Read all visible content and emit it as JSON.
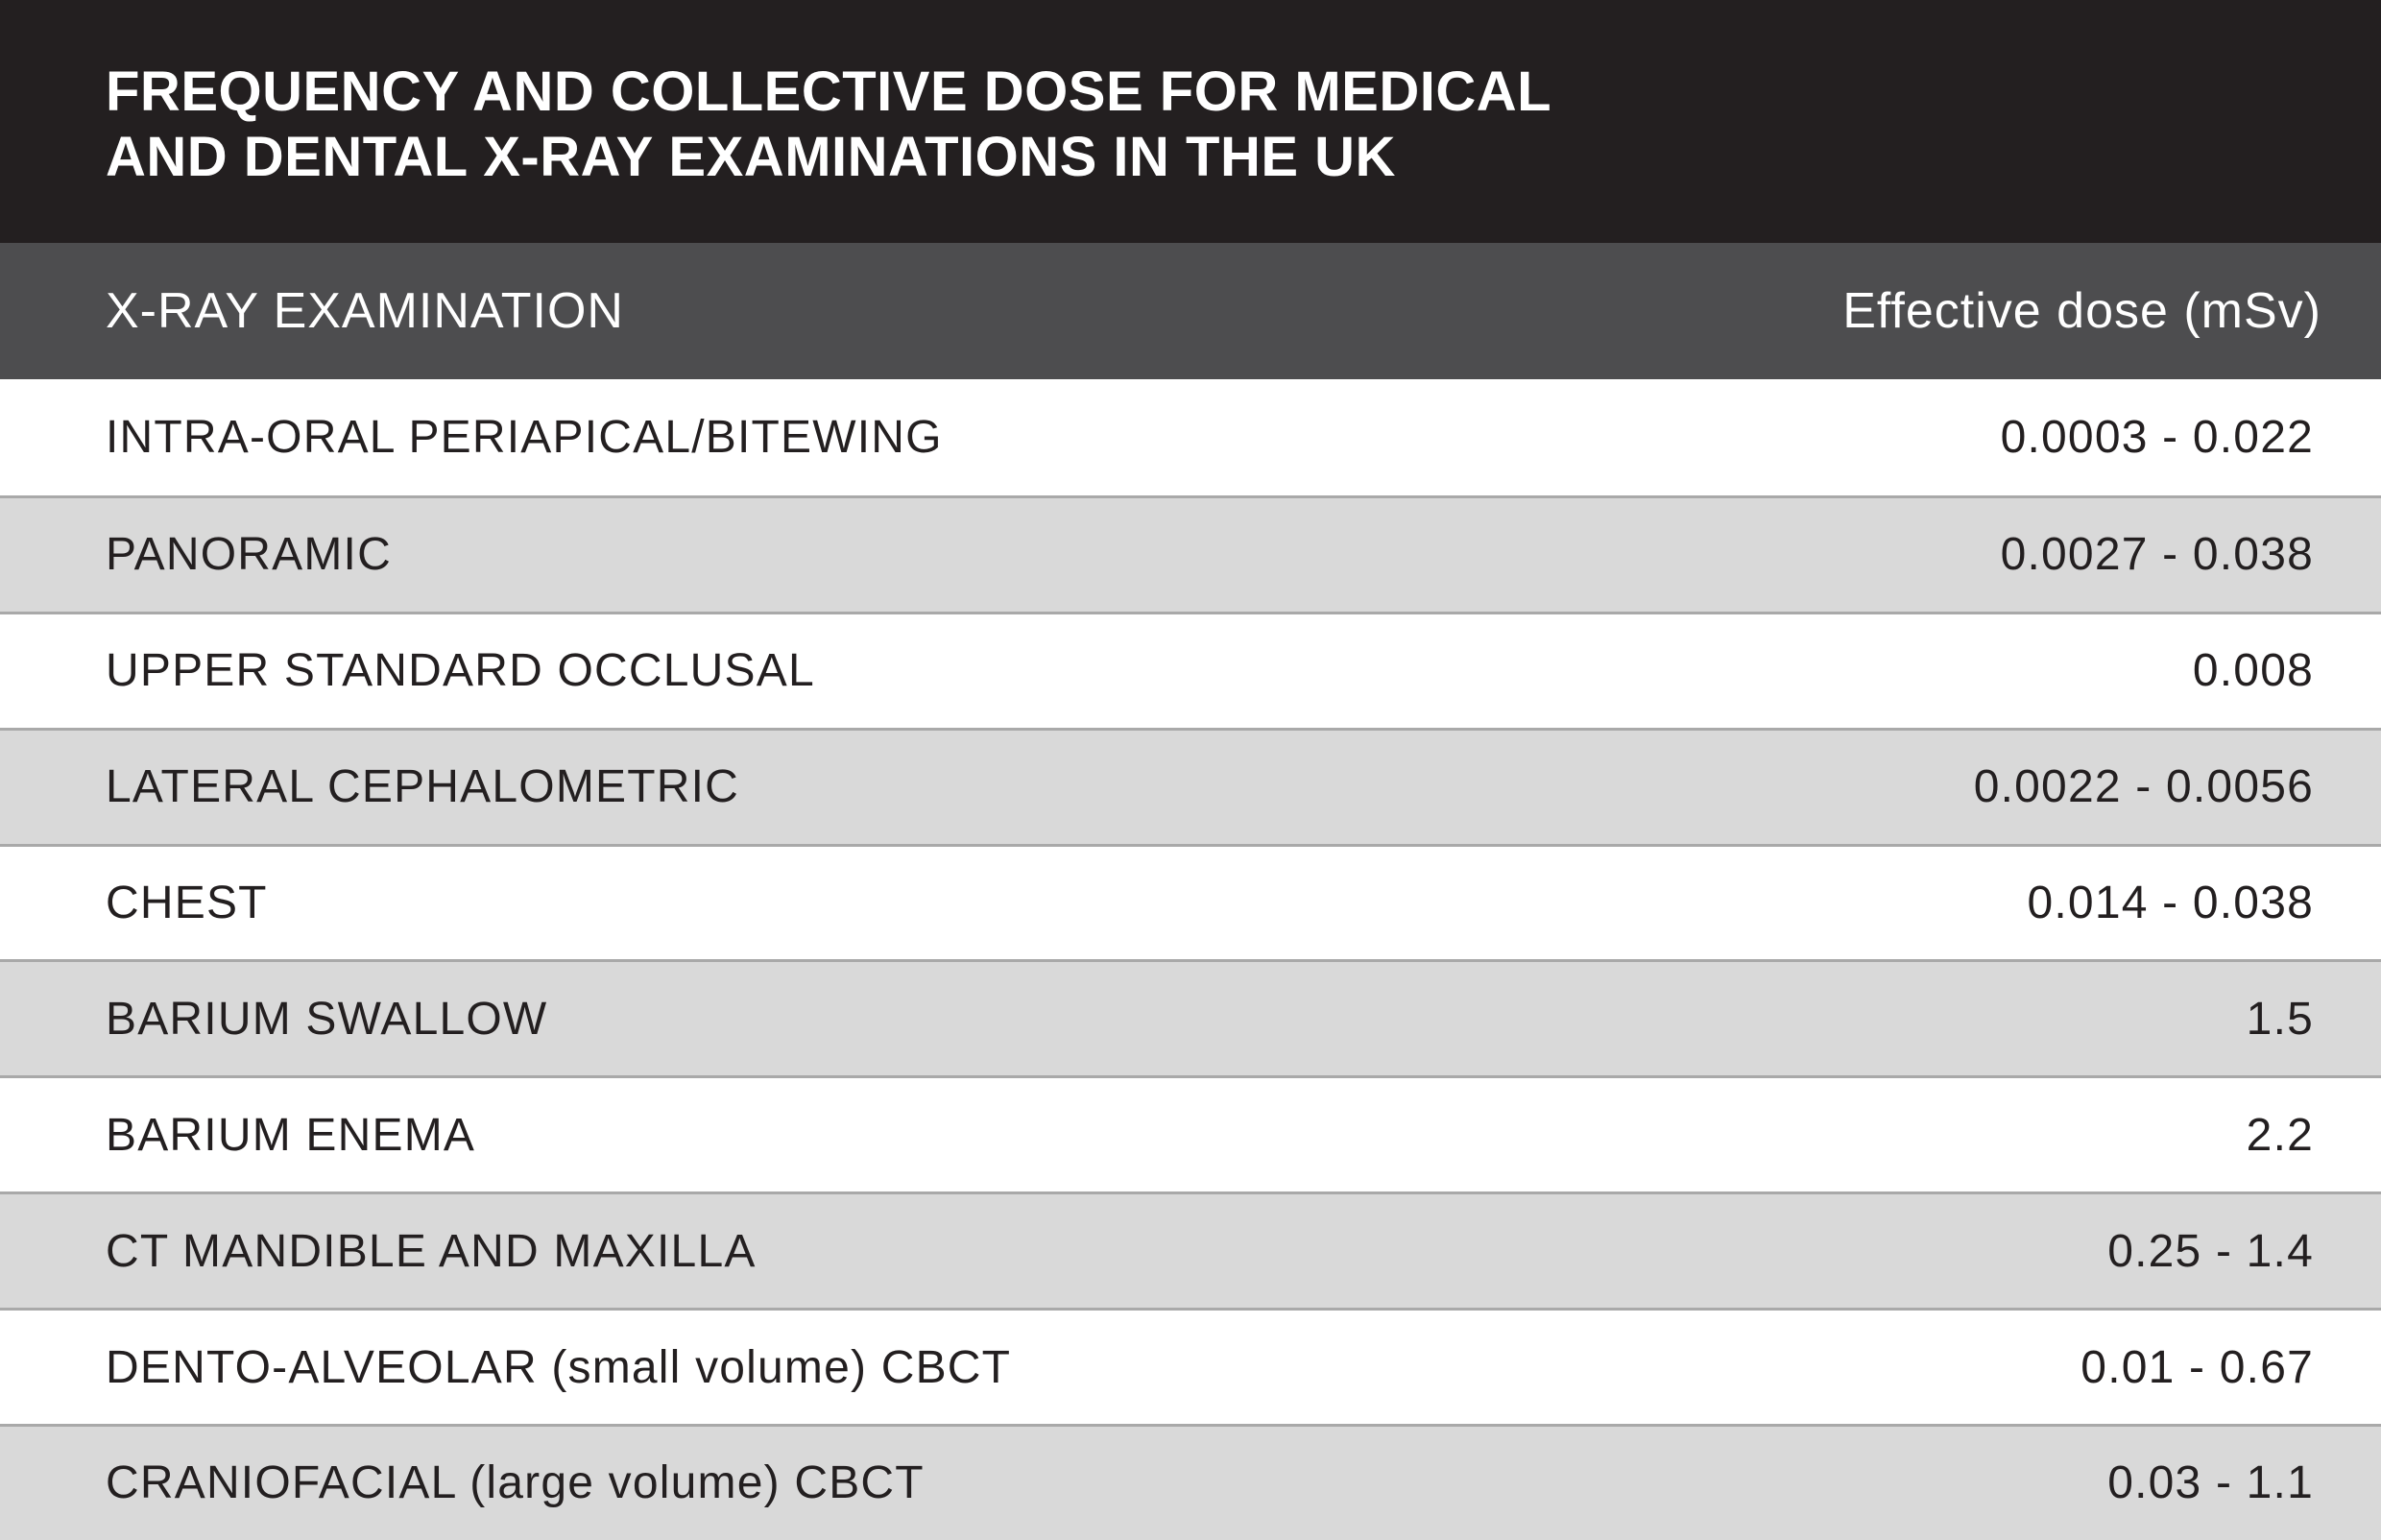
{
  "title": {
    "line1": "FREQUENCY AND COLLECTIVE DOSE FOR MEDICAL",
    "line2": "AND DENTAL X-RAY EXAMINATIONS IN THE UK"
  },
  "table": {
    "headers": {
      "examination": "X-RAY EXAMINATION",
      "dose": "Effective dose (mSv)"
    },
    "rows": [
      {
        "examination": "INTRA-ORAL PERIAPICAL/BITEWING",
        "dose": "0.0003 - 0.022"
      },
      {
        "examination": "PANORAMIC",
        "dose": "0.0027 - 0.038"
      },
      {
        "examination": "UPPER STANDARD OCCLUSAL",
        "dose": "0.008"
      },
      {
        "examination": "LATERAL CEPHALOMETRIC",
        "dose": "0.0022 - 0.0056"
      },
      {
        "examination": "CHEST",
        "dose": "0.014 - 0.038"
      },
      {
        "examination": "BARIUM SWALLOW",
        "dose": "1.5"
      },
      {
        "examination": "BARIUM ENEMA",
        "dose": "2.2"
      },
      {
        "examination": "CT MANDIBLE AND MAXILLA",
        "dose": "0.25 - 1.4"
      },
      {
        "examination": "DENTO-ALVEOLAR (small volume) CBCT",
        "dose": "0.01 - 0.67"
      },
      {
        "examination": "CRANIOFACIAL (large volume) CBCT",
        "dose": "0.03 - 1.1"
      }
    ]
  },
  "colors": {
    "title_background": "#231f20",
    "header_background": "#4d4d4f",
    "row_alternate": "#d9d9d9",
    "row_divider": "#a9a9a9"
  }
}
